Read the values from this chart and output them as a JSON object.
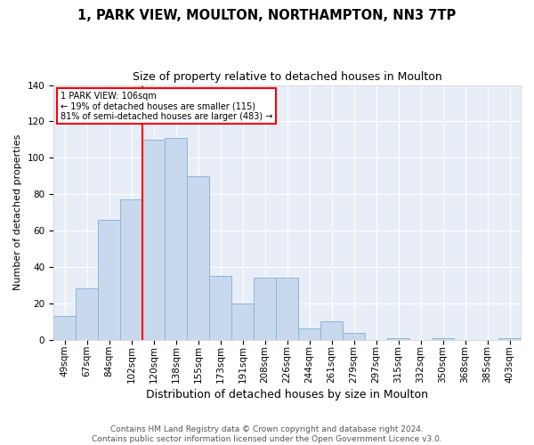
{
  "title": "1, PARK VIEW, MOULTON, NORTHAMPTON, NN3 7TP",
  "subtitle": "Size of property relative to detached houses in Moulton",
  "xlabel": "Distribution of detached houses by size in Moulton",
  "ylabel": "Number of detached properties",
  "categories": [
    "49sqm",
    "67sqm",
    "84sqm",
    "102sqm",
    "120sqm",
    "138sqm",
    "155sqm",
    "173sqm",
    "191sqm",
    "208sqm",
    "226sqm",
    "244sqm",
    "261sqm",
    "279sqm",
    "297sqm",
    "315sqm",
    "332sqm",
    "350sqm",
    "368sqm",
    "385sqm",
    "403sqm"
  ],
  "values": [
    13,
    28,
    66,
    77,
    110,
    111,
    90,
    35,
    20,
    34,
    34,
    6,
    10,
    4,
    0,
    1,
    0,
    1,
    0,
    0,
    1
  ],
  "bar_color": "#c8d9ee",
  "bar_edge_color": "#8cb4d8",
  "vline_x": 3.5,
  "vline_color": "red",
  "annotation_text": "1 PARK VIEW: 106sqm\n← 19% of detached houses are smaller (115)\n81% of semi-detached houses are larger (483) →",
  "annotation_box_color": "white",
  "annotation_box_edge": "red",
  "ylim": [
    0,
    140
  ],
  "yticks": [
    0,
    20,
    40,
    60,
    80,
    100,
    120,
    140
  ],
  "plot_background": "#e8eef8",
  "footer_line1": "Contains HM Land Registry data © Crown copyright and database right 2024.",
  "footer_line2": "Contains public sector information licensed under the Open Government Licence v3.0.",
  "title_fontsize": 10.5,
  "subtitle_fontsize": 9,
  "xlabel_fontsize": 9,
  "ylabel_fontsize": 8,
  "tick_fontsize": 7.5,
  "footer_fontsize": 6.5
}
